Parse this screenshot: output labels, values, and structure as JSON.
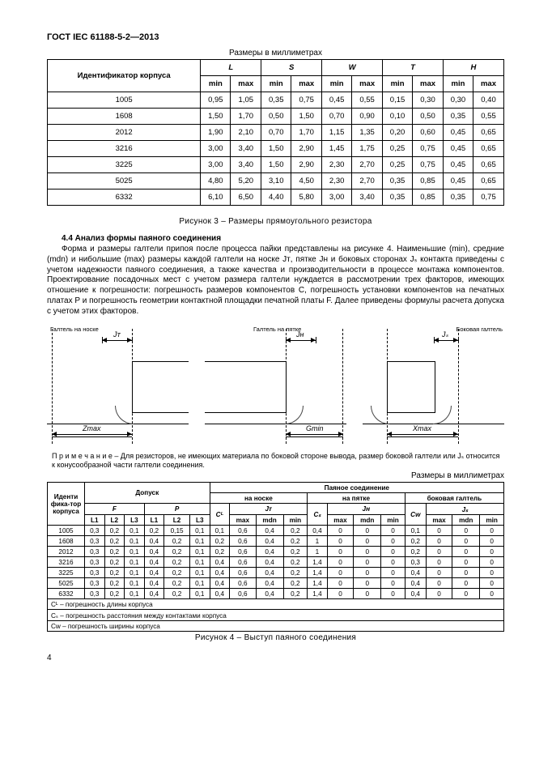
{
  "doc": {
    "id": "ГОСТ IEC 61188-5-2—2013",
    "table1_caption": "Размеры в миллиметрах",
    "fig3": "Рисунок 3 – Размеры прямоугольного резистора",
    "sec44_title": "4.4 Анализ формы паяного соединения",
    "body": "Форма и размеры галтели припоя после процесса пайки представлены на рисунке 4. Наименьшие (min), средние (mdn) и нибольшие (max) размеры каждой галтели на носке Jᴛ, пятке Jʜ и боковых сторонах Jₛ контакта приведены с учетом надежности паяного соединения, а также качества и производительности в процессе монтажа компонентов. Проектирование посадочных мест с учетом размера галтели нуждается в рассмотрении трех факторов, имеющих отношение к погрешности: погрешность размеров компонентов C, погрешность установки компонентов на печатных платах P и погрешность геометрии контактной площадки печатной платы F. Далее приведены формулы расчета допуска с учетом этих факторов.",
    "diag_labels": {
      "a_top": "Галтель на носке",
      "b_top": "Галтель на пятке",
      "c_top": "Боковая галтель",
      "jt": "Jᴛ",
      "jh": "Jʜ",
      "js": "Jₛ",
      "zmax": "Zmax",
      "gmin": "Gmin",
      "xmin": "Xmax"
    },
    "note": "П р и м е ч а н и е  – Для резисторов, не имеющих материала по боковой стороне вывода, размер боковой галтели или Jₛ относится к конусообразной части галтели соединения.",
    "table2_caption": "Размеры в миллиметрах",
    "fig4": "Рисунок 4 – Выступ паяного соединения",
    "footnotes": {
      "cl": "Cᴸ – погрешность длины корпуса",
      "cs": "Cₛ – погрешность расстояния между контактами корпуса",
      "cw": "Cᴡ – погрешность ширины корпуса"
    },
    "page": "4"
  },
  "t1": {
    "head": {
      "id": "Идентификатор корпуса",
      "L": "L",
      "S": "S",
      "W": "W",
      "T": "T",
      "H": "H",
      "min": "min",
      "max": "max"
    },
    "rows": [
      {
        "id": "1005",
        "v": [
          "0,95",
          "1,05",
          "0,35",
          "0,75",
          "0,45",
          "0,55",
          "0,15",
          "0,30",
          "0,30",
          "0,40"
        ]
      },
      {
        "id": "1608",
        "v": [
          "1,50",
          "1,70",
          "0,50",
          "1,50",
          "0,70",
          "0,90",
          "0,10",
          "0,50",
          "0,35",
          "0,55"
        ]
      },
      {
        "id": "2012",
        "v": [
          "1,90",
          "2,10",
          "0,70",
          "1,70",
          "1,15",
          "1,35",
          "0,20",
          "0,60",
          "0,45",
          "0,65"
        ]
      },
      {
        "id": "3216",
        "v": [
          "3,00",
          "3,40",
          "1,50",
          "2,90",
          "1,45",
          "1,75",
          "0,25",
          "0,75",
          "0,45",
          "0,65"
        ]
      },
      {
        "id": "3225",
        "v": [
          "3,00",
          "3,40",
          "1,50",
          "2,90",
          "2,30",
          "2,70",
          "0,25",
          "0,75",
          "0,45",
          "0,65"
        ]
      },
      {
        "id": "5025",
        "v": [
          "4,80",
          "5,20",
          "3,10",
          "4,50",
          "2,30",
          "2,70",
          "0,35",
          "0,85",
          "0,45",
          "0,65"
        ]
      },
      {
        "id": "6332",
        "v": [
          "6,10",
          "6,50",
          "4,40",
          "5,80",
          "3,00",
          "3,40",
          "0,35",
          "0,85",
          "0,35",
          "0,75"
        ]
      }
    ]
  },
  "t2": {
    "head": {
      "id": "Иденти фика-тор корпуса",
      "tol": "Допуск",
      "joint": "Паяное соединение",
      "toe": "на носке",
      "heel": "на пятке",
      "side": "боковая галтель",
      "F": "F",
      "P": "P",
      "JT": "Jᴛ",
      "JH": "Jʜ",
      "JS": "Jₛ",
      "L1": "L1",
      "L2": "L2",
      "L3": "L3",
      "CL": "Cᴸ",
      "CS": "Cₛ",
      "CW": "Cᴡ",
      "max": "max",
      "mdn": "mdn",
      "min": "min"
    },
    "rows": [
      {
        "id": "1005",
        "v": [
          "0,3",
          "0,2",
          "0,1",
          "0,2",
          "0,15",
          "0,1",
          "0,1",
          "0,6",
          "0,4",
          "0,2",
          "0,4",
          "0",
          "0",
          "0",
          "0,1",
          "0",
          "0",
          "0"
        ]
      },
      {
        "id": "1608",
        "v": [
          "0,3",
          "0,2",
          "0,1",
          "0,4",
          "0,2",
          "0,1",
          "0,2",
          "0,6",
          "0,4",
          "0,2",
          "1",
          "0",
          "0",
          "0",
          "0,2",
          "0",
          "0",
          "0"
        ]
      },
      {
        "id": "2012",
        "v": [
          "0,3",
          "0,2",
          "0,1",
          "0,4",
          "0,2",
          "0,1",
          "0,2",
          "0,6",
          "0,4",
          "0,2",
          "1",
          "0",
          "0",
          "0",
          "0,2",
          "0",
          "0",
          "0"
        ]
      },
      {
        "id": "3216",
        "v": [
          "0,3",
          "0,2",
          "0,1",
          "0,4",
          "0,2",
          "0,1",
          "0,4",
          "0,6",
          "0,4",
          "0,2",
          "1,4",
          "0",
          "0",
          "0",
          "0,3",
          "0",
          "0",
          "0"
        ]
      },
      {
        "id": "3225",
        "v": [
          "0,3",
          "0,2",
          "0,1",
          "0,4",
          "0,2",
          "0,1",
          "0,4",
          "0,6",
          "0,4",
          "0,2",
          "1,4",
          "0",
          "0",
          "0",
          "0,4",
          "0",
          "0",
          "0"
        ]
      },
      {
        "id": "5025",
        "v": [
          "0,3",
          "0,2",
          "0,1",
          "0,4",
          "0,2",
          "0,1",
          "0,4",
          "0,6",
          "0,4",
          "0,2",
          "1,4",
          "0",
          "0",
          "0",
          "0,4",
          "0",
          "0",
          "0"
        ]
      },
      {
        "id": "6332",
        "v": [
          "0,3",
          "0,2",
          "0,1",
          "0,4",
          "0,2",
          "0,1",
          "0,4",
          "0,6",
          "0,4",
          "0,2",
          "1,4",
          "0",
          "0",
          "0",
          "0,4",
          "0",
          "0",
          "0"
        ]
      }
    ]
  }
}
